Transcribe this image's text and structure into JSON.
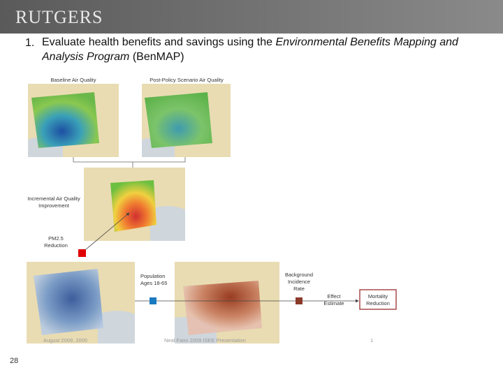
{
  "header": {
    "logo": "RUTGERS"
  },
  "bullet": {
    "number": "1.",
    "text_before": "Evaluate health benefits and savings using the ",
    "text_italic": "Environmental Benefits Mapping and Analysis Program",
    "text_after": " (BenMAP)"
  },
  "diagram": {
    "baseline": "Baseline Air Quality",
    "post_policy": "Post-Policy Scenario Air Quality",
    "incremental": [
      "Incremental Air Quality",
      "Improvement"
    ],
    "pm": [
      "PM2.5",
      "Reduction"
    ],
    "population": [
      "Population",
      "Ages 18-65"
    ],
    "background": [
      "Background",
      "Incidence",
      "Rate"
    ],
    "effect": [
      "Effect",
      "Estimate"
    ],
    "mortality": [
      "Mortality",
      "Reduction"
    ]
  },
  "footer": {
    "left": "August 2009, 2000",
    "center": "Neal Fann 2009 ISEE Presentation",
    "right": "1",
    "page": "28"
  }
}
